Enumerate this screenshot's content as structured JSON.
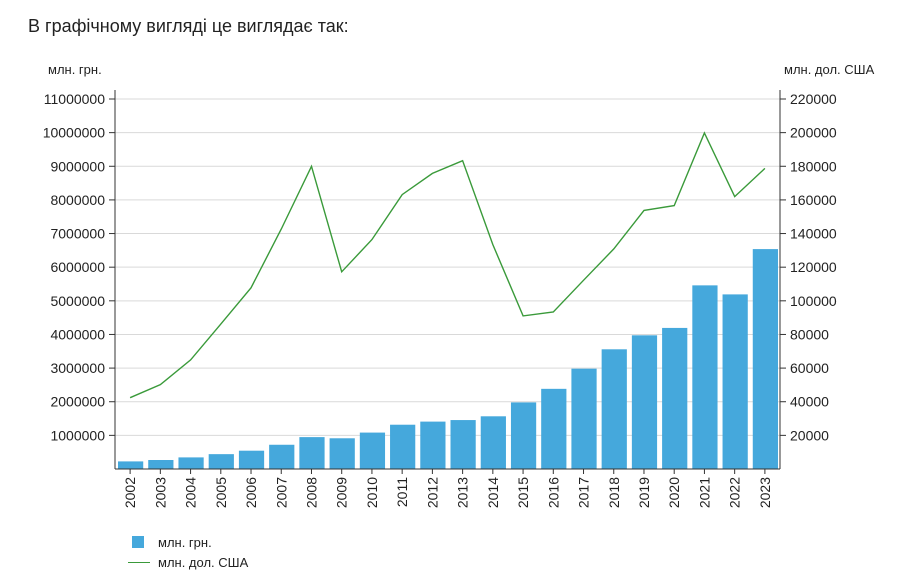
{
  "heading": "В графічному вигляді це виглядає так:",
  "colors": {
    "bars": "#45a8dc",
    "line": "#3a9a3a",
    "grid": "#d9d9d9",
    "axis": "#333333"
  },
  "chart_data": {
    "type": "bar",
    "categories": [
      "2002",
      "2003",
      "2004",
      "2005",
      "2006",
      "2007",
      "2008",
      "2009",
      "2010",
      "2011",
      "2012",
      "2013",
      "2014",
      "2015",
      "2016",
      "2017",
      "2018",
      "2019",
      "2020",
      "2021",
      "2022",
      "2023"
    ],
    "series": [
      {
        "name": "млн. грн.",
        "type": "bar",
        "axis": "left",
        "values": [
          225810,
          267344,
          345113,
          441452,
          544153,
          720731,
          948056,
          913345,
          1082569,
          1316600,
          1408889,
          1454931,
          1566728,
          1979458,
          2383182,
          2982920,
          3558706,
          3974564,
          4194102,
          5459574,
          5191028,
          6537825
        ]
      },
      {
        "name": "млн. дол. США",
        "type": "line",
        "axis": "right",
        "values": [
          42393,
          50133,
          64883,
          86142,
          107753,
          142719,
          179992,
          117228,
          136419,
          163160,
          175781,
          183310,
          133503,
          91031,
          93356,
          112190,
          130891,
          153781,
          156618,
          199766,
          161990,
          178757
        ]
      }
    ],
    "y_left": {
      "label": "млн. грн.",
      "min": 0,
      "max": 11000000,
      "ticks": [
        1000000,
        2000000,
        3000000,
        4000000,
        5000000,
        6000000,
        7000000,
        8000000,
        9000000,
        10000000,
        11000000
      ]
    },
    "y_right": {
      "label": "млн. дол. США",
      "min": 0,
      "max": 220000,
      "ticks": [
        20000,
        40000,
        60000,
        80000,
        100000,
        120000,
        140000,
        160000,
        180000,
        200000,
        220000
      ]
    },
    "grid": true,
    "legend_position": "bottom-left"
  },
  "legend": [
    {
      "label": "млн. грн.",
      "kind": "bar"
    },
    {
      "label": "млн. дол. США",
      "kind": "line"
    }
  ]
}
